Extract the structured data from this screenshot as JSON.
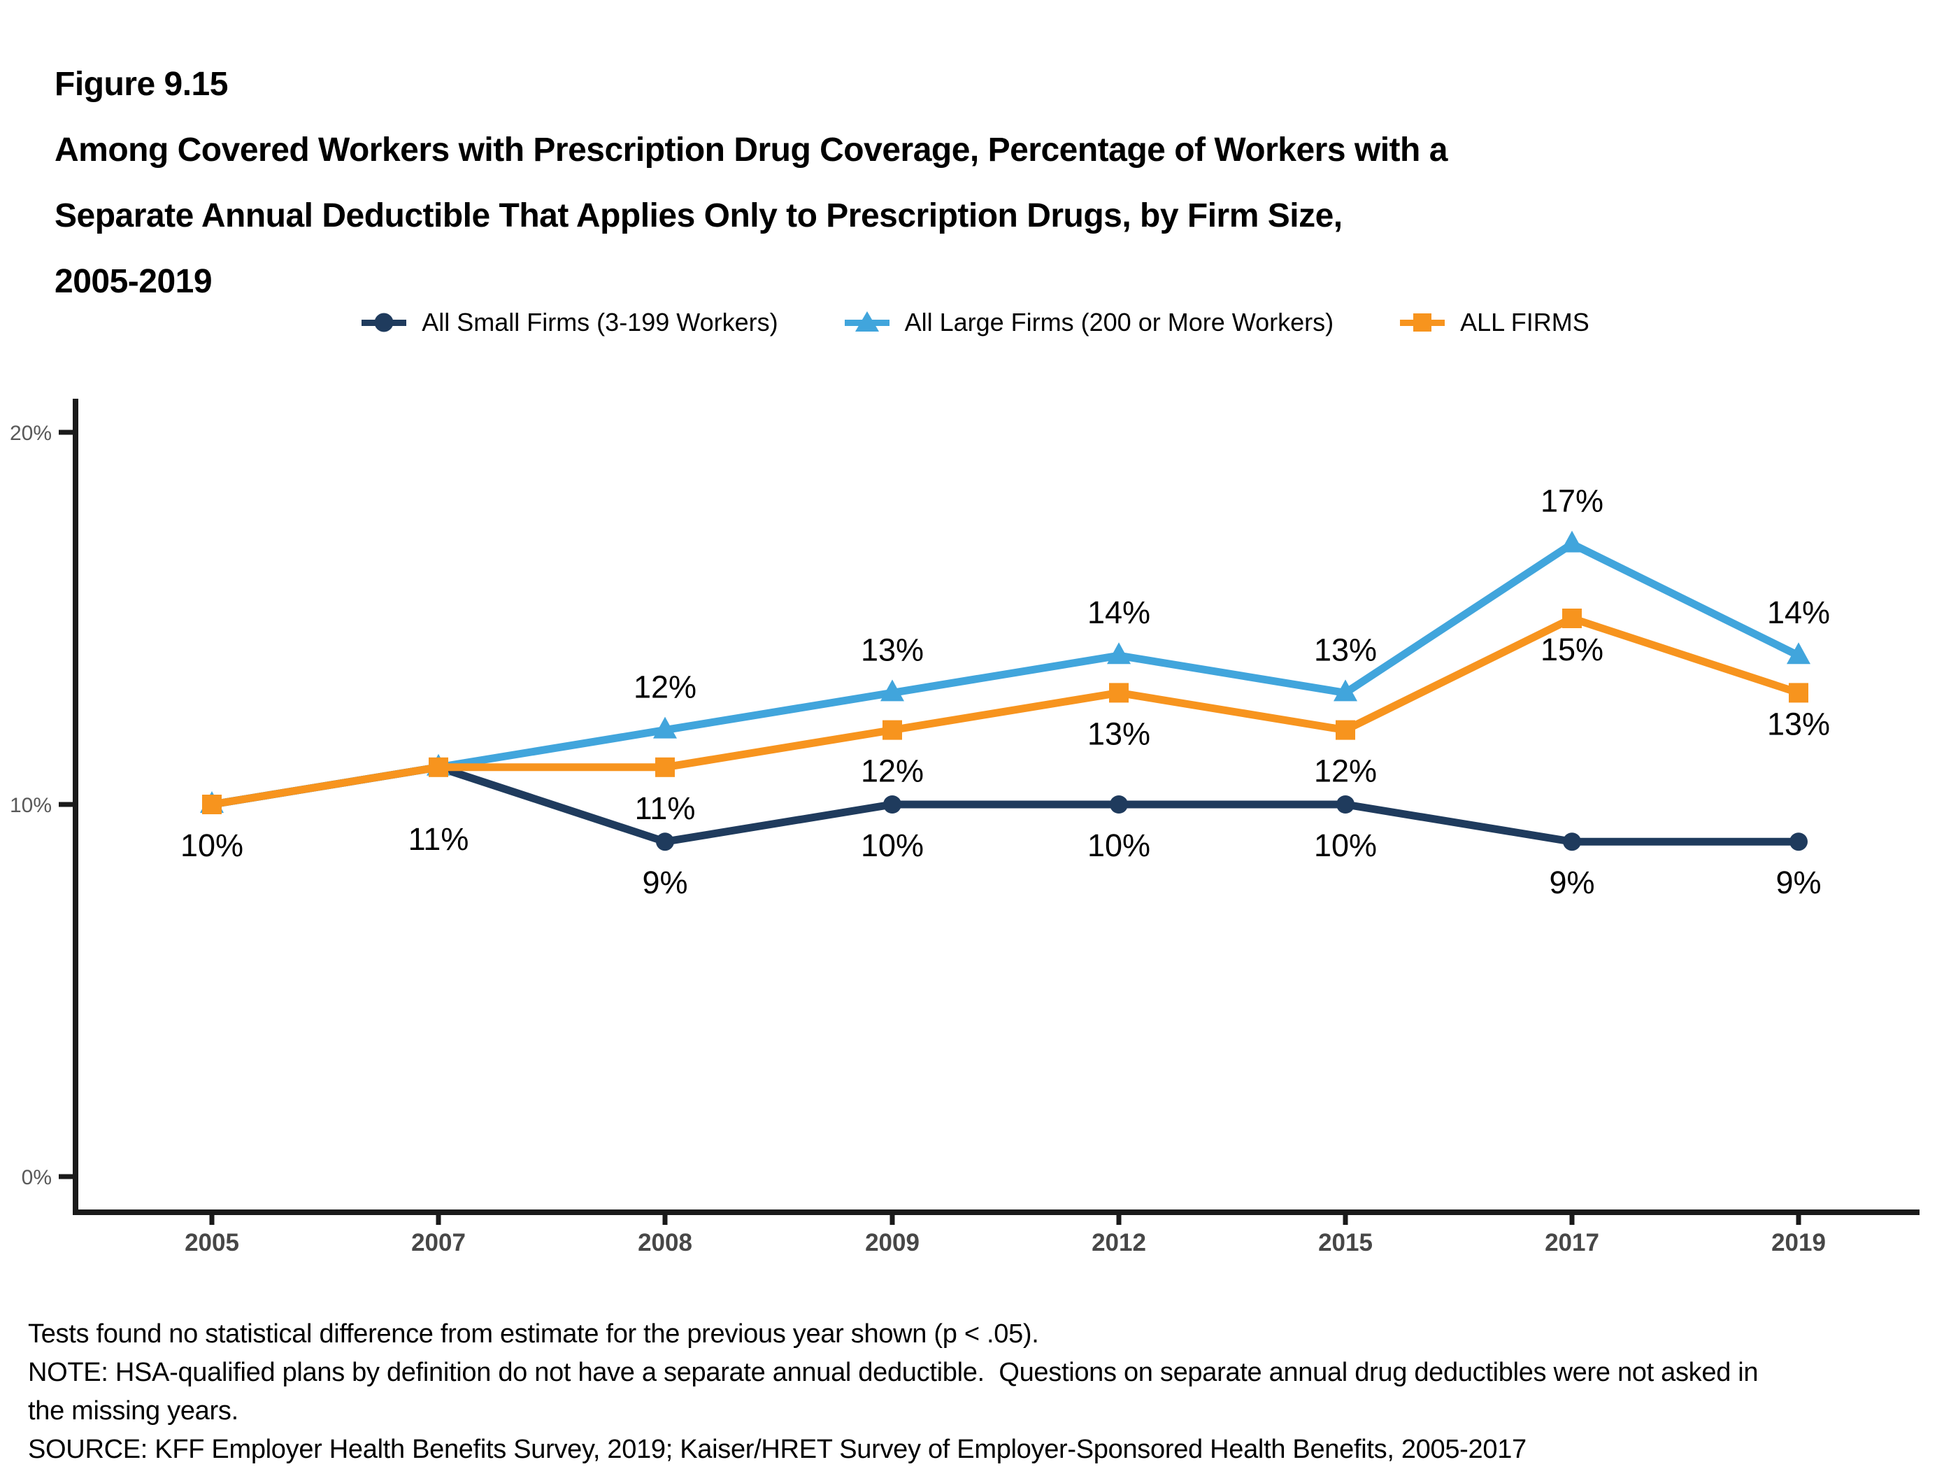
{
  "header": {
    "lines": [
      "Figure 9.15",
      "Among Covered Workers with Prescription Drug Coverage, Percentage of Workers with a",
      "Separate Annual Deductible That Applies Only to Prescription Drugs, by Firm Size,",
      "2005-2019"
    ]
  },
  "legend": {
    "items": [
      {
        "label": "All Small Firms (3-199 Workers)",
        "marker": "circle",
        "color": "#1F3B5D"
      },
      {
        "label": "All Large Firms (200 or More Workers)",
        "marker": "triangle",
        "color": "#41A5DC"
      },
      {
        "label": "ALL FIRMS",
        "marker": "square",
        "color": "#F7941E"
      }
    ]
  },
  "chart_data": {
    "type": "line",
    "title": "Percentage of Workers with a Separate Annual Deductible That Applies Only to Prescription Drugs, by Firm Size, 2005-2019",
    "x_labels": [
      "2005",
      "2007",
      "2008",
      "2009",
      "2012",
      "2015",
      "2017",
      "2019"
    ],
    "y_ticks": [
      {
        "label": "0%",
        "value": 0
      },
      {
        "label": "10%",
        "value": 10
      },
      {
        "label": "20%",
        "value": 20
      }
    ],
    "ylim": [
      0,
      21
    ],
    "grid": false,
    "legend_position": "top",
    "axis_color": "#1a1a1a",
    "x_label_color": "#474747",
    "y_label_color": "#595959",
    "series": [
      {
        "name": "All Small Firms (3-199 Workers)",
        "marker": "circle",
        "color": "#1F3B5D",
        "values": [
          10,
          11,
          9,
          10,
          10,
          10,
          9,
          9
        ]
      },
      {
        "name": "All Large Firms (200 or More Workers)",
        "marker": "triangle",
        "color": "#41A5DC",
        "values": [
          10,
          11,
          12,
          13,
          14,
          13,
          17,
          14
        ]
      },
      {
        "name": "ALL FIRMS",
        "marker": "square",
        "color": "#F7941E",
        "values": [
          10,
          11,
          11,
          12,
          13,
          12,
          15,
          13
        ]
      }
    ],
    "point_labels": [
      {
        "series": "ALL FIRMS",
        "index": 0,
        "text": "10%",
        "position": "below"
      },
      {
        "series": "ALL FIRMS",
        "index": 1,
        "text": "11%",
        "position": "below"
      },
      {
        "series": "ALL FIRMS",
        "index": 2,
        "text": "11%",
        "position": "below"
      },
      {
        "series": "ALL FIRMS",
        "index": 3,
        "text": "12%",
        "position": "below"
      },
      {
        "series": "ALL FIRMS",
        "index": 4,
        "text": "13%",
        "position": "below"
      },
      {
        "series": "ALL FIRMS",
        "index": 5,
        "text": "12%",
        "position": "below"
      },
      {
        "series": "ALL FIRMS",
        "index": 6,
        "text": "15%",
        "position": "below"
      },
      {
        "series": "ALL FIRMS",
        "index": 7,
        "text": "13%",
        "position": "below"
      },
      {
        "series": "All Large Firms (200 or More Workers)",
        "index": 2,
        "text": "12%",
        "position": "above"
      },
      {
        "series": "All Large Firms (200 or More Workers)",
        "index": 3,
        "text": "13%",
        "position": "above"
      },
      {
        "series": "All Large Firms (200 or More Workers)",
        "index": 4,
        "text": "14%",
        "position": "above"
      },
      {
        "series": "All Large Firms (200 or More Workers)",
        "index": 5,
        "text": "13%",
        "position": "above"
      },
      {
        "series": "All Large Firms (200 or More Workers)",
        "index": 6,
        "text": "17%",
        "position": "above"
      },
      {
        "series": "All Large Firms (200 or More Workers)",
        "index": 7,
        "text": "14%",
        "position": "above"
      },
      {
        "series": "All Small Firms (3-199 Workers)",
        "index": 2,
        "text": "9%",
        "position": "below"
      },
      {
        "series": "All Small Firms (3-199 Workers)",
        "index": 3,
        "text": "10%",
        "position": "below"
      },
      {
        "series": "All Small Firms (3-199 Workers)",
        "index": 4,
        "text": "10%",
        "position": "below"
      },
      {
        "series": "All Small Firms (3-199 Workers)",
        "index": 5,
        "text": "10%",
        "position": "below"
      },
      {
        "series": "All Small Firms (3-199 Workers)",
        "index": 6,
        "text": "9%",
        "position": "below"
      },
      {
        "series": "All Small Firms (3-199 Workers)",
        "index": 7,
        "text": "9%",
        "position": "below"
      }
    ]
  },
  "footnotes": [
    "Tests found no statistical difference from estimate for the previous year shown (p < .05).",
    "NOTE: HSA-qualified plans by definition do not have a separate annual deductible.  Questions on separate annual drug deductibles were not asked in",
    "the missing years.",
    "SOURCE: KFF Employer Health Benefits Survey, 2019; Kaiser/HRET Survey of Employer-Sponsored Health Benefits, 2005-2017"
  ]
}
